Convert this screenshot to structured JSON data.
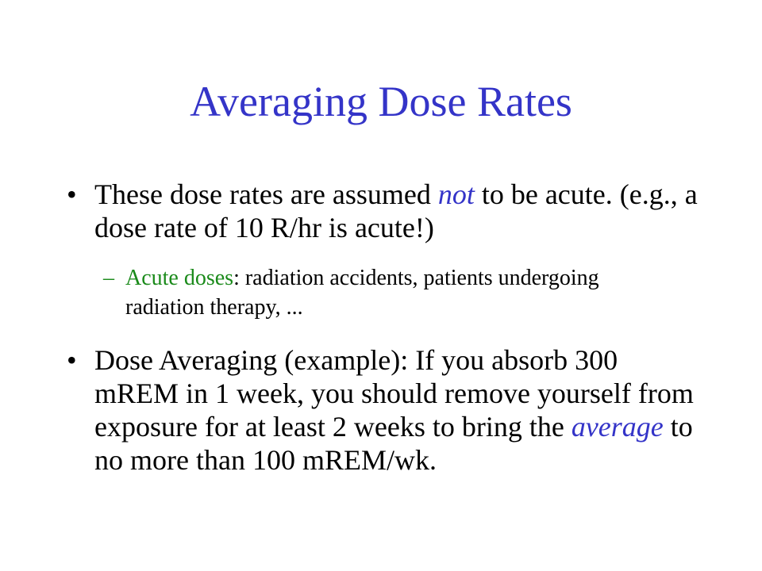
{
  "title": "Averaging Dose Rates",
  "bullet_marker": "•",
  "sub_marker": "–",
  "bullet1": {
    "pre": "These dose rates are assumed ",
    "emphasis": "not",
    "post": " to be acute.  (e.g., a dose rate of 10 R/hr is acute!)"
  },
  "sub1": {
    "highlight": "Acute doses",
    "post": ": radiation accidents, patients undergoing radiation therapy, ..."
  },
  "bullet2": {
    "pre": "Dose Averaging (example): If you absorb 300 mREM in 1 week, you should remove yourself from exposure for at least 2 weeks to bring the ",
    "emphasis": "average",
    "post": " to no more than 100 mREM/wk."
  },
  "colors": {
    "title": "#3434c8",
    "emphasis": "#3434c8",
    "sub_highlight": "#1a8a1a",
    "text": "#000000",
    "background": "#ffffff"
  }
}
